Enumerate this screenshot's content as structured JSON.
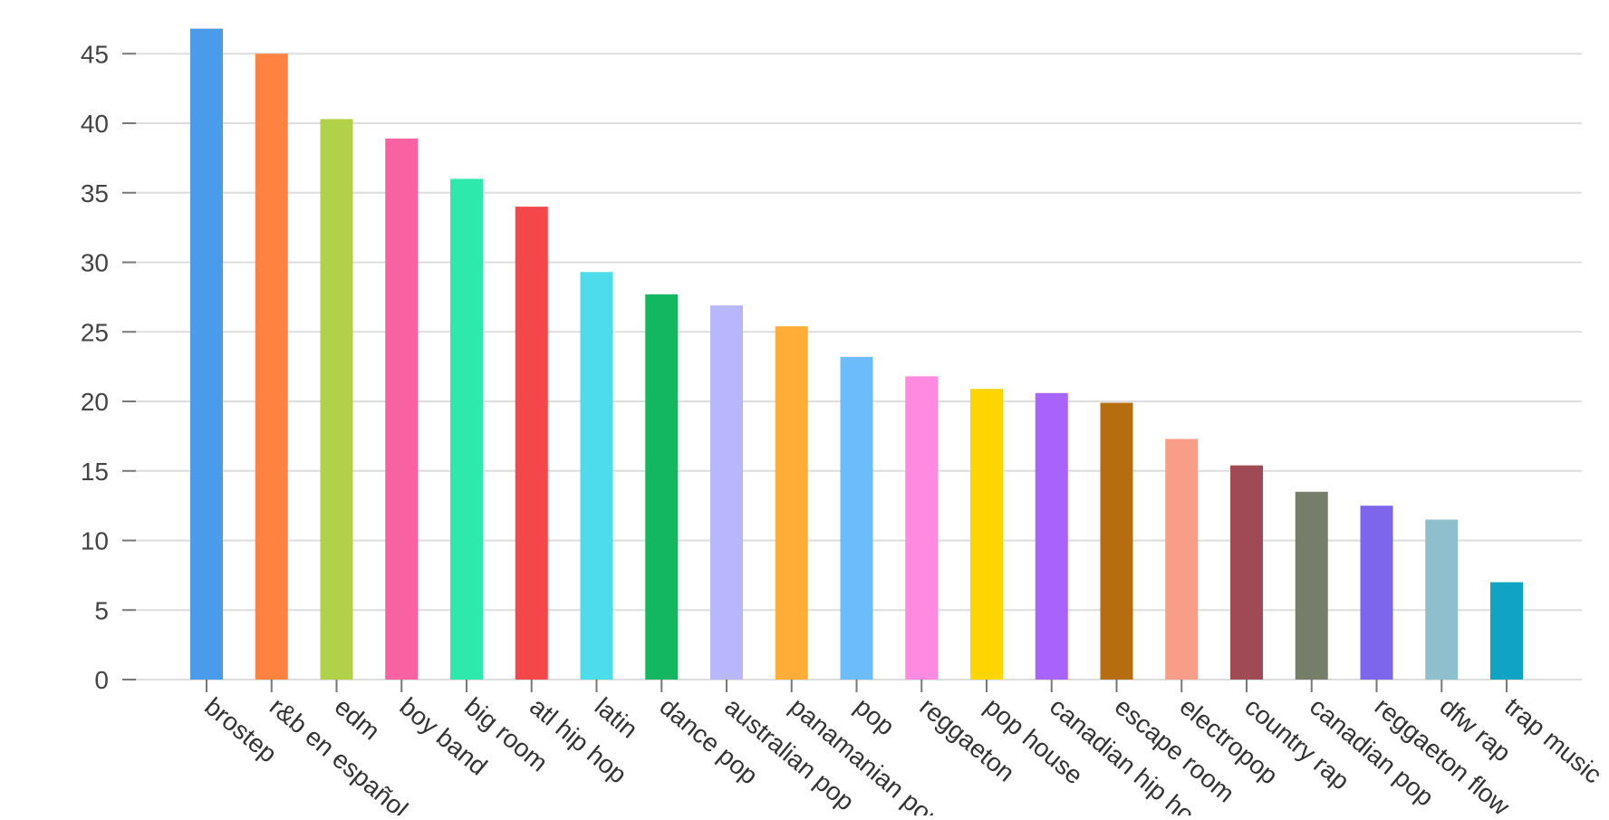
{
  "chart_data": {
    "type": "bar",
    "categories": [
      "brostep",
      "r&b en español",
      "edm",
      "boy band",
      "big room",
      "atl hip hop",
      "latin",
      "dance pop",
      "australian pop",
      "panamanian pop",
      "pop",
      "reggaeton",
      "pop house",
      "canadian hip hop",
      "escape room",
      "electropop",
      "country rap",
      "canadian pop",
      "reggaeton flow",
      "dfw rap",
      "trap music"
    ],
    "values": [
      46.8,
      45.0,
      40.3,
      38.9,
      36.0,
      34.0,
      29.3,
      27.7,
      26.9,
      25.4,
      23.2,
      21.8,
      20.9,
      20.6,
      19.9,
      17.3,
      15.4,
      13.5,
      12.5,
      11.5,
      7.0
    ],
    "colors": [
      "#4a9be9",
      "#ff8340",
      "#b0d149",
      "#f962a2",
      "#2deaac",
      "#f3474a",
      "#4cdcec",
      "#14b761",
      "#b8b6fc",
      "#ffad36",
      "#6cbcfc",
      "#ff8ae0",
      "#ffd500",
      "#a963fd",
      "#b66d10",
      "#f89e88",
      "#9f4a54",
      "#767d6b",
      "#7e66ec",
      "#8fbfcc",
      "#10a3c3"
    ],
    "yticks": [
      0,
      5,
      10,
      15,
      20,
      25,
      30,
      35,
      40,
      45
    ],
    "ylim": [
      0,
      47
    ],
    "grid": true,
    "title": "",
    "xlabel": "",
    "ylabel": ""
  }
}
